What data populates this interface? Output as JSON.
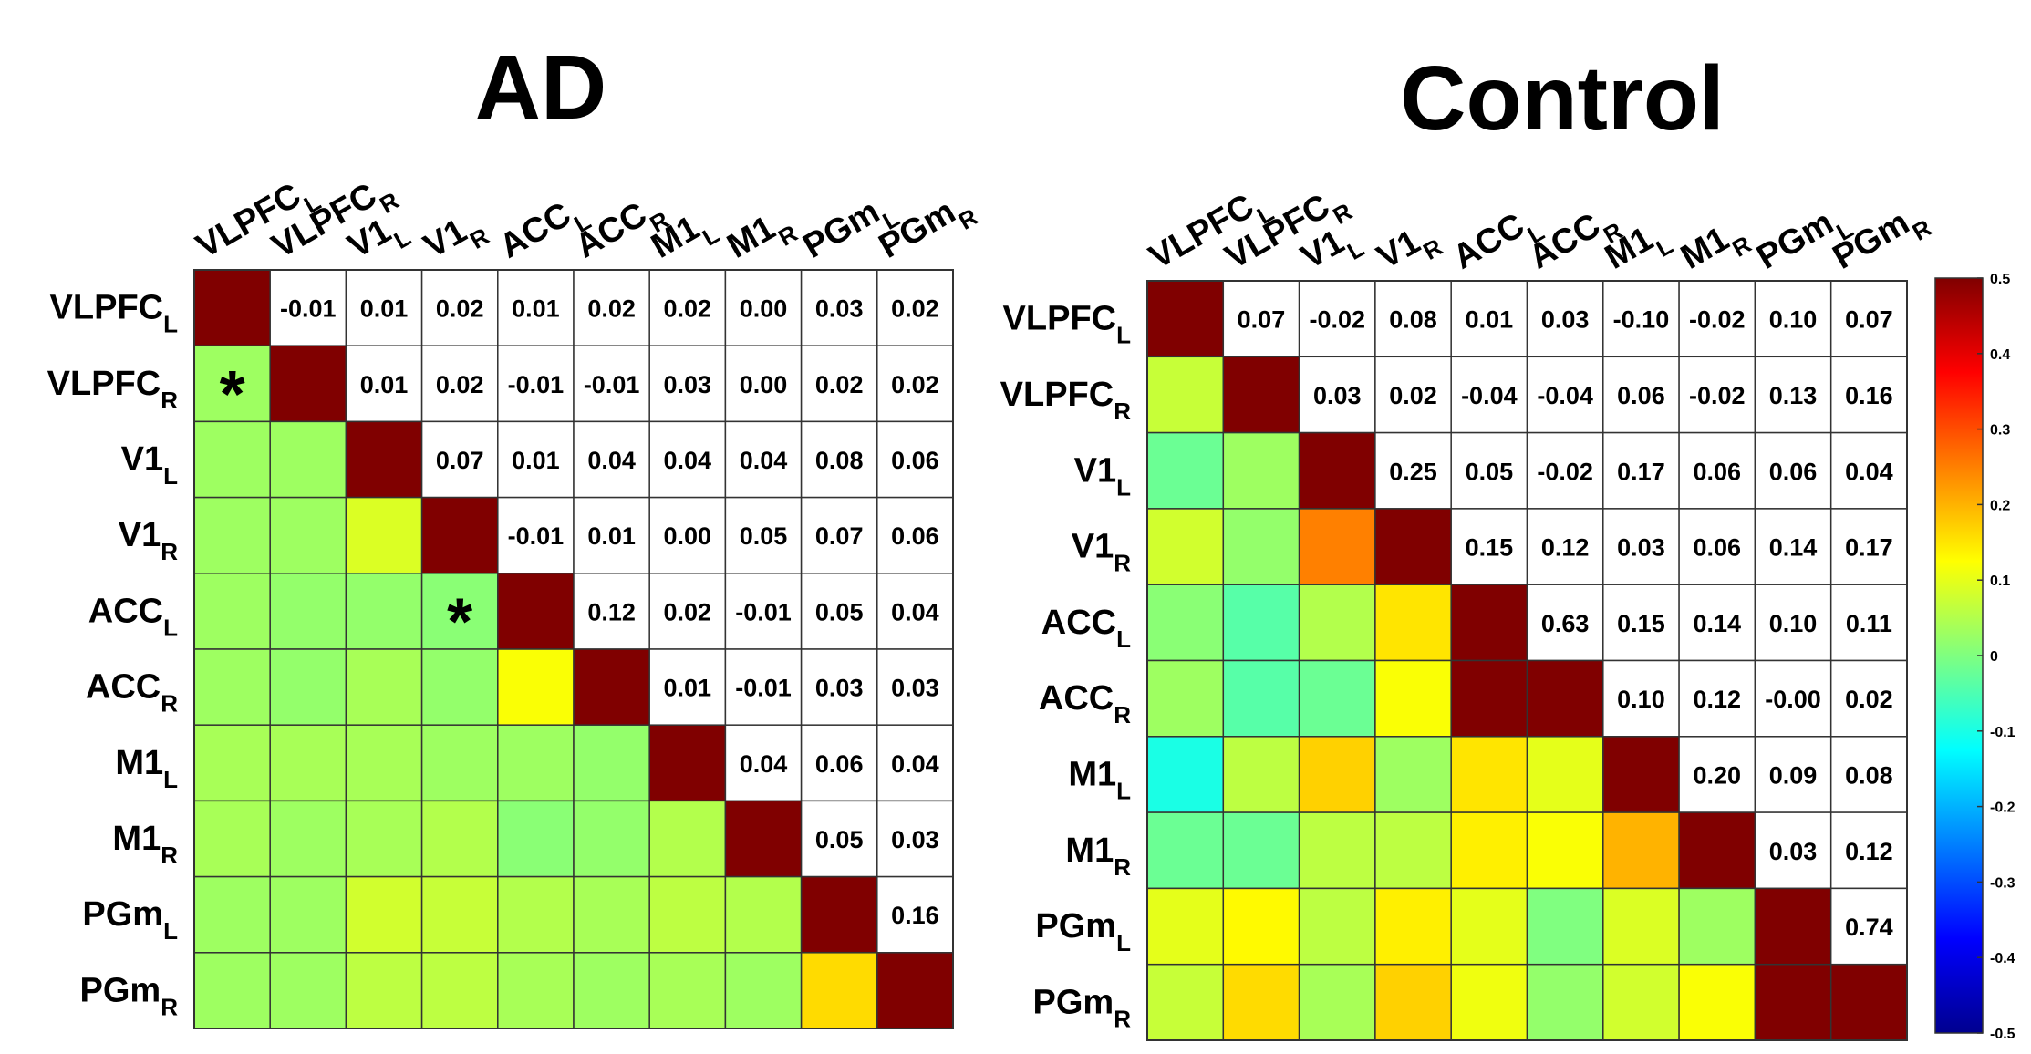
{
  "chart_data": [
    {
      "type": "heatmap",
      "title": "AD",
      "regions": [
        {
          "name": "VLPFC",
          "sub": "L"
        },
        {
          "name": "VLPFC",
          "sub": "R"
        },
        {
          "name": "V1",
          "sub": "L"
        },
        {
          "name": "V1",
          "sub": "R"
        },
        {
          "name": "ACC",
          "sub": "L"
        },
        {
          "name": "ACC",
          "sub": "R"
        },
        {
          "name": "M1",
          "sub": "L"
        },
        {
          "name": "M1",
          "sub": "R"
        },
        {
          "name": "PGm",
          "sub": "L"
        },
        {
          "name": "PGm",
          "sub": "R"
        }
      ],
      "upper_values": [
        [
          null,
          "-0.01",
          "0.01",
          "0.02",
          "0.01",
          "0.02",
          "0.02",
          "0.00",
          "0.03",
          "0.02"
        ],
        [
          null,
          null,
          "0.01",
          "0.02",
          "-0.01",
          "-0.01",
          "0.03",
          "0.00",
          "0.02",
          "0.02"
        ],
        [
          null,
          null,
          null,
          "0.07",
          "0.01",
          "0.04",
          "0.04",
          "0.04",
          "0.08",
          "0.06"
        ],
        [
          null,
          null,
          null,
          null,
          "-0.01",
          "0.01",
          "0.00",
          "0.05",
          "0.07",
          "0.06"
        ],
        [
          null,
          null,
          null,
          null,
          null,
          "0.12",
          "0.02",
          "-0.01",
          "0.05",
          "0.04"
        ],
        [
          null,
          null,
          null,
          null,
          null,
          null,
          "0.01",
          "-0.01",
          "0.03",
          "0.03"
        ],
        [
          null,
          null,
          null,
          null,
          null,
          null,
          null,
          "0.04",
          "0.06",
          "0.04"
        ],
        [
          null,
          null,
          null,
          null,
          null,
          null,
          null,
          null,
          "0.05",
          "0.03"
        ],
        [
          null,
          null,
          null,
          null,
          null,
          null,
          null,
          null,
          null,
          "0.16"
        ],
        [
          null,
          null,
          null,
          null,
          null,
          null,
          null,
          null,
          null,
          null
        ]
      ],
      "lower_colors": [
        [],
        [
          0.03
        ],
        [
          0.03,
          0.03
        ],
        [
          0.03,
          0.03,
          0.09
        ],
        [
          0.03,
          0.02,
          0.02,
          0.01
        ],
        [
          0.03,
          0.02,
          0.04,
          0.02,
          0.12
        ],
        [
          0.04,
          0.04,
          0.04,
          0.03,
          0.03,
          0.02
        ],
        [
          0.04,
          0.03,
          0.04,
          0.05,
          0.01,
          0.02,
          0.05
        ],
        [
          0.03,
          0.03,
          0.08,
          0.07,
          0.05,
          0.04,
          0.06,
          0.05
        ],
        [
          0.03,
          0.03,
          0.06,
          0.06,
          0.04,
          0.03,
          0.04,
          0.03,
          0.16
        ]
      ],
      "significant": [
        [
          1,
          0
        ],
        [
          4,
          3
        ]
      ],
      "marker": "*"
    },
    {
      "type": "heatmap",
      "title": "Control",
      "regions": [
        {
          "name": "VLPFC",
          "sub": "L"
        },
        {
          "name": "VLPFC",
          "sub": "R"
        },
        {
          "name": "V1",
          "sub": "L"
        },
        {
          "name": "V1",
          "sub": "R"
        },
        {
          "name": "ACC",
          "sub": "L"
        },
        {
          "name": "ACC",
          "sub": "R"
        },
        {
          "name": "M1",
          "sub": "L"
        },
        {
          "name": "M1",
          "sub": "R"
        },
        {
          "name": "PGm",
          "sub": "L"
        },
        {
          "name": "PGm",
          "sub": "R"
        }
      ],
      "upper_values": [
        [
          null,
          "0.07",
          "-0.02",
          "0.08",
          "0.01",
          "0.03",
          "-0.10",
          "-0.02",
          "0.10",
          "0.07"
        ],
        [
          null,
          null,
          "0.03",
          "0.02",
          "-0.04",
          "-0.04",
          "0.06",
          "-0.02",
          "0.13",
          "0.16"
        ],
        [
          null,
          null,
          null,
          "0.25",
          "0.05",
          "-0.02",
          "0.17",
          "0.06",
          "0.06",
          "0.04"
        ],
        [
          null,
          null,
          null,
          null,
          "0.15",
          "0.12",
          "0.03",
          "0.06",
          "0.14",
          "0.17"
        ],
        [
          null,
          null,
          null,
          null,
          null,
          "0.63",
          "0.15",
          "0.14",
          "0.10",
          "0.11"
        ],
        [
          null,
          null,
          null,
          null,
          null,
          null,
          "0.10",
          "0.12",
          "-0.00",
          "0.02"
        ],
        [
          null,
          null,
          null,
          null,
          null,
          null,
          null,
          "0.20",
          "0.09",
          "0.08"
        ],
        [
          null,
          null,
          null,
          null,
          null,
          null,
          null,
          null,
          "0.03",
          "0.12"
        ],
        [
          null,
          null,
          null,
          null,
          null,
          null,
          null,
          null,
          null,
          "0.74"
        ],
        [
          null,
          null,
          null,
          null,
          null,
          null,
          null,
          null,
          null,
          null
        ]
      ],
      "lower_colors": [
        [],
        [
          0.07
        ],
        [
          -0.02,
          0.03
        ],
        [
          0.08,
          0.02,
          0.25
        ],
        [
          0.01,
          -0.04,
          0.05,
          0.15
        ],
        [
          0.03,
          -0.04,
          -0.02,
          0.12,
          0.63
        ],
        [
          -0.1,
          0.06,
          0.17,
          0.03,
          0.15,
          0.1
        ],
        [
          -0.02,
          -0.02,
          0.06,
          0.06,
          0.14,
          0.12,
          0.2
        ],
        [
          0.1,
          0.13,
          0.06,
          0.14,
          0.1,
          -0.0,
          0.09,
          0.03
        ],
        [
          0.07,
          0.16,
          0.04,
          0.17,
          0.11,
          0.02,
          0.08,
          0.12,
          0.74
        ]
      ],
      "significant": [],
      "marker": "*"
    }
  ],
  "colorbar": {
    "min": -0.5,
    "max": 0.5,
    "ticks": [
      "0.5",
      "0.4",
      "0.3",
      "0.2",
      "0.1",
      "0",
      "-0.1",
      "-0.2",
      "-0.3",
      "-0.4",
      "-0.5"
    ],
    "colormap": "jet",
    "diagonal_color": "#800000"
  }
}
